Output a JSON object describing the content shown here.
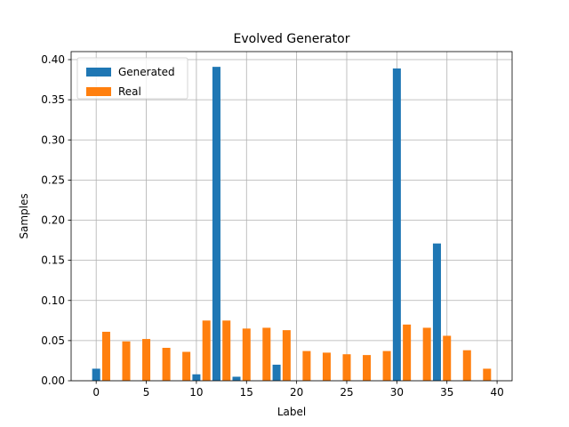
{
  "chart_data": {
    "type": "bar",
    "title": "Evolved Generator",
    "xlabel": "Label",
    "ylabel": "Samples",
    "xlim": [
      -2.5,
      41.5
    ],
    "ylim": [
      0,
      0.41
    ],
    "xticks": [
      0,
      5,
      10,
      15,
      20,
      25,
      30,
      35,
      40
    ],
    "yticks": [
      0.0,
      0.05,
      0.1,
      0.15,
      0.2,
      0.25,
      0.3,
      0.35,
      0.4
    ],
    "ytick_labels": [
      "0.00",
      "0.05",
      "0.10",
      "0.15",
      "0.20",
      "0.25",
      "0.30",
      "0.35",
      "0.40"
    ],
    "grid": true,
    "legend_position": "top-left",
    "series": [
      {
        "name": "Generated",
        "color": "#1f77b4",
        "points": [
          {
            "x": 0,
            "y": 0.015
          },
          {
            "x": 10,
            "y": 0.008
          },
          {
            "x": 12,
            "y": 0.391
          },
          {
            "x": 14,
            "y": 0.005
          },
          {
            "x": 18,
            "y": 0.02
          },
          {
            "x": 30,
            "y": 0.389
          },
          {
            "x": 34,
            "y": 0.171
          }
        ]
      },
      {
        "name": "Real",
        "color": "#ff7f0e",
        "points": [
          {
            "x": 1,
            "y": 0.061
          },
          {
            "x": 3,
            "y": 0.049
          },
          {
            "x": 5,
            "y": 0.052
          },
          {
            "x": 7,
            "y": 0.041
          },
          {
            "x": 9,
            "y": 0.036
          },
          {
            "x": 11,
            "y": 0.075
          },
          {
            "x": 13,
            "y": 0.075
          },
          {
            "x": 15,
            "y": 0.065
          },
          {
            "x": 17,
            "y": 0.066
          },
          {
            "x": 19,
            "y": 0.063
          },
          {
            "x": 21,
            "y": 0.037
          },
          {
            "x": 23,
            "y": 0.035
          },
          {
            "x": 25,
            "y": 0.033
          },
          {
            "x": 27,
            "y": 0.032
          },
          {
            "x": 29,
            "y": 0.037
          },
          {
            "x": 31,
            "y": 0.07
          },
          {
            "x": 33,
            "y": 0.066
          },
          {
            "x": 35,
            "y": 0.056
          },
          {
            "x": 37,
            "y": 0.038
          },
          {
            "x": 39,
            "y": 0.015
          }
        ]
      }
    ]
  }
}
